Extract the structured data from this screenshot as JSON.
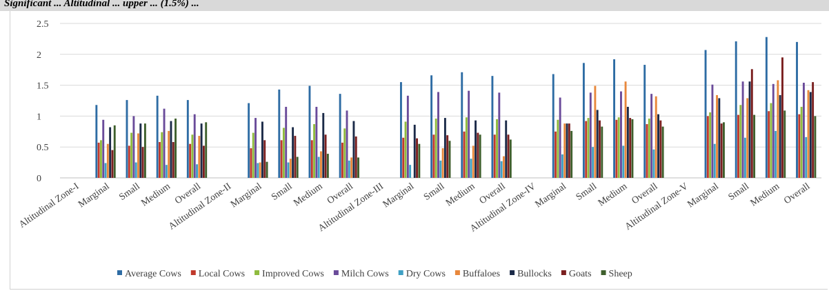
{
  "header_strip": {
    "text": "Significant ... Altitudinal ... upper ... (1.5%) ..."
  },
  "chart_data": {
    "type": "bar",
    "title": "",
    "xlabel": "",
    "ylabel": "",
    "ylim": [
      0,
      2.5
    ],
    "yticks": [
      "0",
      "0.5",
      "1",
      "1.5",
      "2",
      "2.5"
    ],
    "grid": true,
    "legend_position": "bottom",
    "categories": [
      "Altitudinal Zone-I",
      "Marginal",
      "Small",
      "Medium",
      "Overall",
      "Altitudinal Zone-II",
      "Marginal",
      "Small",
      "Medium",
      "Overall",
      "Altitudinal Zone-III",
      "Marginal",
      "Small",
      "Medium",
      "Overall",
      "Altitudinal Zone-IV",
      "Marginal",
      "Small",
      "Medium",
      "Overall",
      "Altitudinal Zone-V",
      "Marginal",
      "Small",
      "Medium",
      "Overall"
    ],
    "series": [
      {
        "name": "Average Cows",
        "color": "#2e6ca4",
        "values": [
          null,
          1.18,
          1.26,
          1.33,
          1.26,
          null,
          1.21,
          1.43,
          1.49,
          1.36,
          null,
          1.55,
          1.66,
          1.71,
          1.65,
          null,
          1.68,
          1.86,
          1.92,
          1.83,
          null,
          2.07,
          2.21,
          2.28,
          2.2
        ]
      },
      {
        "name": "Local Cows",
        "color": "#c0392b",
        "values": [
          null,
          0.57,
          0.52,
          0.58,
          0.55,
          null,
          0.48,
          0.61,
          0.61,
          0.57,
          null,
          0.65,
          0.7,
          0.75,
          0.7,
          null,
          0.75,
          0.92,
          0.94,
          0.87,
          null,
          1.0,
          1.02,
          1.08,
          1.03
        ]
      },
      {
        "name": "Improved Cows",
        "color": "#8fbb3e",
        "values": [
          null,
          0.61,
          0.73,
          0.74,
          0.7,
          null,
          0.73,
          0.81,
          0.87,
          0.8,
          null,
          0.91,
          0.96,
          0.98,
          0.95,
          null,
          0.94,
          0.97,
          0.98,
          0.96,
          null,
          1.06,
          1.18,
          1.21,
          1.15
        ]
      },
      {
        "name": "Milch Cows",
        "color": "#6a4b9a",
        "values": [
          null,
          0.94,
          1.0,
          1.12,
          1.03,
          null,
          0.97,
          1.15,
          1.15,
          1.09,
          null,
          1.33,
          1.39,
          1.41,
          1.38,
          null,
          1.3,
          1.38,
          1.4,
          1.36,
          null,
          1.51,
          1.56,
          1.52,
          1.54
        ]
      },
      {
        "name": "Dry Cows",
        "color": "#3fa0c4",
        "values": [
          null,
          0.24,
          0.25,
          0.21,
          0.22,
          null,
          0.24,
          0.25,
          0.34,
          0.28,
          null,
          0.21,
          0.28,
          0.31,
          0.27,
          null,
          0.38,
          0.5,
          0.52,
          0.46,
          null,
          0.55,
          0.65,
          0.76,
          0.66
        ]
      },
      {
        "name": "Buffaloes",
        "color": "#e8883c",
        "values": [
          null,
          0.55,
          0.72,
          0.76,
          0.68,
          null,
          0.25,
          0.31,
          0.43,
          0.33,
          null,
          null,
          0.48,
          0.52,
          0.35,
          null,
          0.88,
          1.49,
          1.56,
          1.32,
          null,
          1.34,
          1.29,
          1.58,
          1.42
        ]
      },
      {
        "name": "Bullocks",
        "color": "#1b2a48",
        "values": [
          null,
          0.82,
          0.88,
          0.92,
          0.88,
          null,
          0.91,
          0.82,
          1.05,
          0.92,
          null,
          0.86,
          0.97,
          0.93,
          0.93,
          null,
          0.88,
          1.1,
          1.15,
          1.03,
          null,
          1.29,
          1.56,
          1.34,
          1.39
        ]
      },
      {
        "name": "Goats",
        "color": "#7a1f1f",
        "values": [
          null,
          0.45,
          0.5,
          0.58,
          0.52,
          null,
          0.61,
          0.68,
          0.7,
          0.67,
          null,
          0.64,
          0.69,
          0.73,
          0.7,
          null,
          0.88,
          0.93,
          0.97,
          0.93,
          null,
          0.88,
          1.76,
          1.95,
          1.55
        ]
      },
      {
        "name": "Sheep",
        "color": "#3e5f2c",
        "values": [
          null,
          0.85,
          0.88,
          0.96,
          0.9,
          null,
          0.26,
          0.34,
          0.39,
          0.33,
          null,
          0.55,
          0.6,
          0.7,
          0.62,
          null,
          0.76,
          0.83,
          0.95,
          0.83,
          null,
          0.9,
          1.02,
          1.09,
          1.0
        ]
      }
    ]
  }
}
